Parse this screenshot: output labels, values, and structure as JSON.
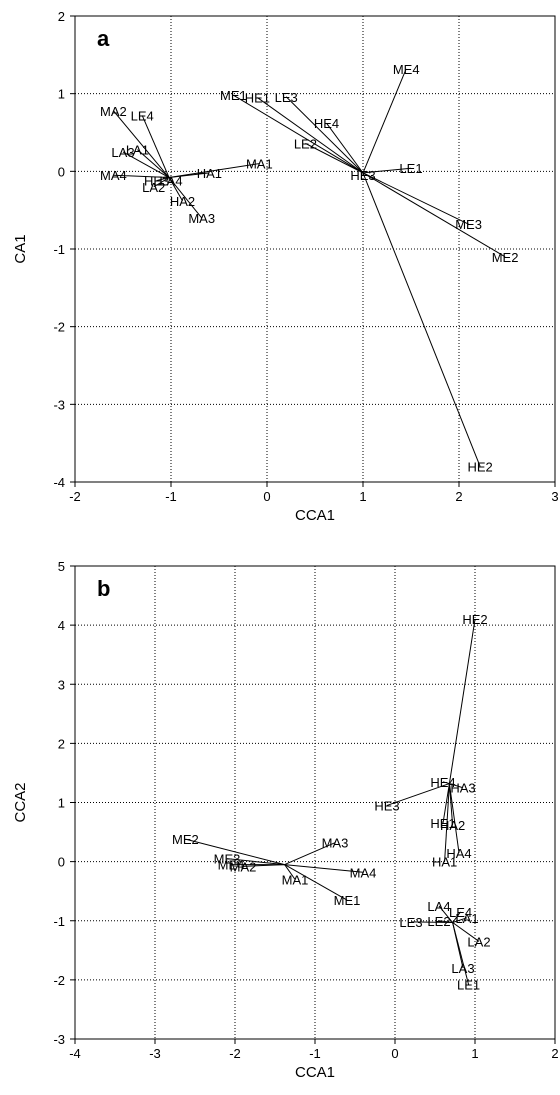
{
  "chart_data": [
    {
      "type": "scatter",
      "panel_letter": "a",
      "xlabel": "CCA1",
      "ylabel": "CA1",
      "xlim": [
        -2,
        3
      ],
      "ylim": [
        -4,
        2
      ],
      "x_ticks": [
        -2,
        -1,
        0,
        1,
        2,
        3
      ],
      "y_ticks": [
        -4,
        -3,
        -2,
        -1,
        0,
        1,
        2
      ],
      "x_tick_labels": [
        "-2",
        "-1",
        "0",
        "1",
        "2",
        "3"
      ],
      "y_tick_labels": [
        "-4",
        "-3",
        "-2",
        "-1",
        "0",
        "1",
        "2"
      ],
      "grid": true,
      "grid_style": "dotted",
      "centroids": [
        {
          "x": -1.02,
          "y": -0.08
        },
        {
          "x": 1.0,
          "y": -0.02
        }
      ],
      "points": [
        {
          "label": "MA2",
          "x": -1.6,
          "y": 0.78,
          "centroid": 0
        },
        {
          "label": "LE4",
          "x": -1.3,
          "y": 0.72,
          "centroid": 0
        },
        {
          "label": "LA3",
          "x": -1.5,
          "y": 0.25,
          "centroid": 0
        },
        {
          "label": "LA1",
          "x": -1.35,
          "y": 0.28,
          "centroid": 0
        },
        {
          "label": "MA4",
          "x": -1.6,
          "y": -0.05,
          "centroid": 0
        },
        {
          "label": "LA2",
          "x": -1.18,
          "y": -0.2,
          "centroid": 0
        },
        {
          "label": "HE3",
          "x": -1.15,
          "y": -0.12,
          "centroid": 0
        },
        {
          "label": "LA4",
          "x": -1.0,
          "y": -0.12,
          "centroid": 0
        },
        {
          "label": "HA1",
          "x": -0.6,
          "y": -0.02,
          "centroid": 0
        },
        {
          "label": "MA1",
          "x": -0.08,
          "y": 0.1,
          "centroid": 0
        },
        {
          "label": "HA2",
          "x": -0.88,
          "y": -0.38,
          "centroid": 0
        },
        {
          "label": "MA3",
          "x": -0.68,
          "y": -0.6,
          "centroid": 0
        },
        {
          "label": "ME4",
          "x": 1.45,
          "y": 1.32,
          "centroid": 1
        },
        {
          "label": "ME1",
          "x": -0.35,
          "y": 0.98,
          "centroid": 1
        },
        {
          "label": "HE1",
          "x": -0.1,
          "y": 0.95,
          "centroid": 1
        },
        {
          "label": "LE3",
          "x": 0.2,
          "y": 0.96,
          "centroid": 1
        },
        {
          "label": "HE4",
          "x": 0.62,
          "y": 0.62,
          "centroid": 1
        },
        {
          "label": "LE2",
          "x": 0.4,
          "y": 0.36,
          "centroid": 1
        },
        {
          "label": "LE1",
          "x": 1.5,
          "y": 0.04,
          "centroid": 1
        },
        {
          "label": "HE3",
          "x": 1.0,
          "y": -0.05,
          "centroid": 1
        },
        {
          "label": "ME3",
          "x": 2.1,
          "y": -0.68,
          "centroid": 1
        },
        {
          "label": "ME2",
          "x": 2.48,
          "y": -1.1,
          "centroid": 1
        },
        {
          "label": "HE2",
          "x": 2.22,
          "y": -3.8,
          "centroid": 1
        }
      ]
    },
    {
      "type": "scatter",
      "panel_letter": "b",
      "xlabel": "CCA1",
      "ylabel": "CCA2",
      "xlim": [
        -4,
        2
      ],
      "ylim": [
        -3,
        5
      ],
      "x_ticks": [
        -4,
        -3,
        -2,
        -1,
        0,
        1,
        2
      ],
      "y_ticks": [
        -3,
        -2,
        -1,
        0,
        1,
        2,
        3,
        4,
        5
      ],
      "x_tick_labels": [
        "-4",
        "-3",
        "-2",
        "-1",
        "0",
        "1",
        "2"
      ],
      "y_tick_labels": [
        "-3",
        "-2",
        "-1",
        "0",
        "1",
        "2",
        "3",
        "4",
        "5"
      ],
      "grid": true,
      "grid_style": "dotted",
      "centroids": [
        {
          "x": 0.68,
          "y": 1.32
        },
        {
          "x": -1.38,
          "y": -0.05
        },
        {
          "x": 0.72,
          "y": -1.03
        }
      ],
      "points": [
        {
          "label": "HE2",
          "x": 1.0,
          "y": 4.1,
          "centroid": 0
        },
        {
          "label": "HE4",
          "x": 0.6,
          "y": 1.35,
          "centroid": 0
        },
        {
          "label": "HA3",
          "x": 0.85,
          "y": 1.25,
          "centroid": 0
        },
        {
          "label": "HE3",
          "x": -0.1,
          "y": 0.95,
          "centroid": 0
        },
        {
          "label": "HE1",
          "x": 0.6,
          "y": 0.65,
          "centroid": 0
        },
        {
          "label": "HA2",
          "x": 0.72,
          "y": 0.62,
          "centroid": 0
        },
        {
          "label": "HA4",
          "x": 0.8,
          "y": 0.15,
          "centroid": 0
        },
        {
          "label": "HA1",
          "x": 0.62,
          "y": 0.0,
          "centroid": 0
        },
        {
          "label": "ME2",
          "x": -2.62,
          "y": 0.38,
          "centroid": 1
        },
        {
          "label": "ME3",
          "x": -2.1,
          "y": 0.05,
          "centroid": 1
        },
        {
          "label": "ME4",
          "x": -2.05,
          "y": -0.05,
          "centroid": 1
        },
        {
          "label": "MA2",
          "x": -1.9,
          "y": -0.08,
          "centroid": 1
        },
        {
          "label": "MA3",
          "x": -0.75,
          "y": 0.32,
          "centroid": 1
        },
        {
          "label": "MA4",
          "x": -0.4,
          "y": -0.18,
          "centroid": 1
        },
        {
          "label": "MA1",
          "x": -1.25,
          "y": -0.3,
          "centroid": 1
        },
        {
          "label": "ME1",
          "x": -0.6,
          "y": -0.65,
          "centroid": 1
        },
        {
          "label": "LA4",
          "x": 0.55,
          "y": -0.75,
          "centroid": 2
        },
        {
          "label": "LE4",
          "x": 0.82,
          "y": -0.85,
          "centroid": 2
        },
        {
          "label": "LE3",
          "x": 0.2,
          "y": -1.02,
          "centroid": 2
        },
        {
          "label": "LE2",
          "x": 0.55,
          "y": -1.0,
          "centroid": 2
        },
        {
          "label": "LA1",
          "x": 0.9,
          "y": -0.95,
          "centroid": 2
        },
        {
          "label": "LA2",
          "x": 1.05,
          "y": -1.35,
          "centroid": 2
        },
        {
          "label": "LA3",
          "x": 0.85,
          "y": -1.8,
          "centroid": 2
        },
        {
          "label": "LE1",
          "x": 0.92,
          "y": -2.08,
          "centroid": 2
        }
      ]
    }
  ]
}
